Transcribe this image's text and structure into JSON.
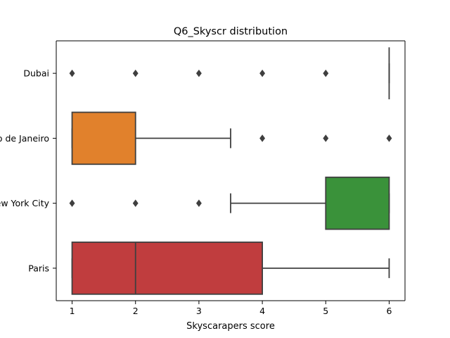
{
  "chart_data": {
    "type": "boxplot",
    "title": "Q6_Skyscr distribution",
    "xlabel": "Skyscarapers score",
    "ylabel": "",
    "orientation": "horizontal",
    "xlim": [
      0.75,
      6.25
    ],
    "xticks": [
      1,
      2,
      3,
      4,
      5,
      6
    ],
    "grid": false,
    "categories": [
      "Dubai",
      "Rio de Janeiro",
      "New York City",
      "Paris"
    ],
    "boxes": [
      {
        "category": "Dubai",
        "color": "#3274a1",
        "q1": 6,
        "median": 6,
        "q3": 6,
        "whisker_low": 6,
        "whisker_high": 6,
        "outliers": [
          1,
          2,
          3,
          4,
          5
        ]
      },
      {
        "category": "Rio de Janeiro",
        "color": "#e1812c",
        "q1": 1,
        "median": 1,
        "q3": 2,
        "whisker_low": 1,
        "whisker_high": 3.5,
        "outliers": [
          4,
          5,
          6
        ]
      },
      {
        "category": "New York City",
        "color": "#3a923a",
        "q1": 5,
        "median": 6,
        "q3": 6,
        "whisker_low": 3.5,
        "whisker_high": 6,
        "outliers": [
          1,
          2,
          3
        ]
      },
      {
        "category": "Paris",
        "color": "#c03d3e",
        "q1": 1,
        "median": 2,
        "q3": 4,
        "whisker_low": 1,
        "whisker_high": 6,
        "outliers": []
      }
    ]
  }
}
